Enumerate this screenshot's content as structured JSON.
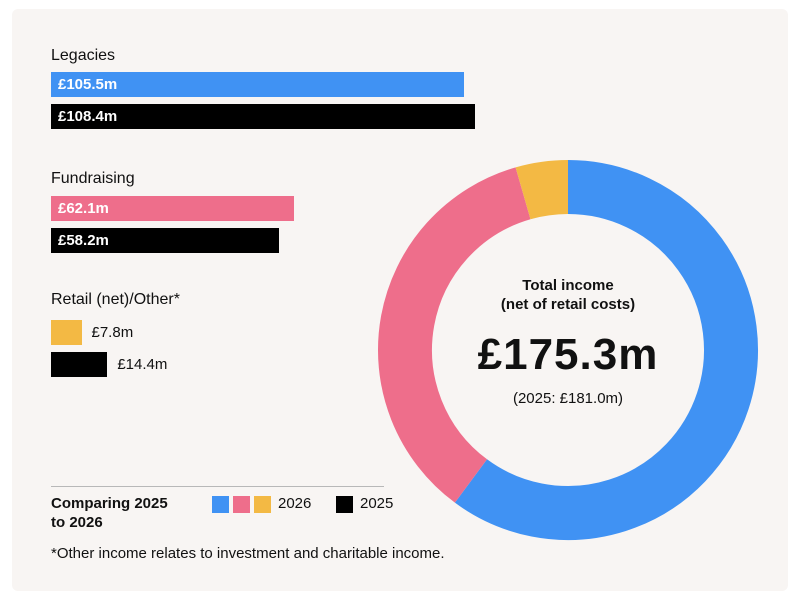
{
  "colors": {
    "legacies": "#4092f3",
    "fundraising": "#ee6e8b",
    "retail_other": "#f3b944",
    "prior_year": "#000000",
    "background": "#f8f5f3"
  },
  "chart_data": [
    {
      "type": "bar",
      "orientation": "horizontal",
      "categories": [
        "Legacies",
        "Fundraising",
        "Retail (net)/Other*"
      ],
      "series": [
        {
          "name": "2026",
          "values": [
            105.5,
            62.1,
            7.8
          ],
          "labels": [
            "£105.5m",
            "£62.1m",
            "£7.8m"
          ]
        },
        {
          "name": "2025",
          "values": [
            108.4,
            58.2,
            14.4
          ],
          "labels": [
            "£108.4m",
            "£58.2m",
            "£14.4m"
          ]
        }
      ],
      "unit": "£m"
    },
    {
      "type": "pie",
      "style": "donut",
      "categories": [
        "Legacies",
        "Fundraising",
        "Retail (net)/Other*"
      ],
      "values": [
        105.5,
        62.1,
        7.8
      ],
      "colors": [
        "#4092f3",
        "#ee6e8b",
        "#f3b944"
      ],
      "center_label": "Total income\n(net of retail costs)",
      "center_value": "£175.3m",
      "center_subtext": "(2025: £181.0m)"
    }
  ],
  "center": {
    "label_line1": "Total income",
    "label_line2": "(net of retail costs)",
    "value": "£175.3m",
    "subtext": "(2025: £181.0m)"
  },
  "legend": {
    "title_line1": "Comparing 2025",
    "title_line2": "to 2026",
    "current_label": "2026",
    "prior_label": "2025"
  },
  "footnote": "*Other income relates to investment and charitable income."
}
